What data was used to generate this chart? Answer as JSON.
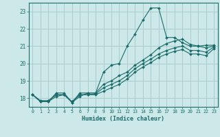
{
  "xlabel": "Humidex (Indice chaleur)",
  "bg_color": "#cce8e8",
  "grid_color": "#aacccc",
  "line_color": "#1a6b6b",
  "xlim": [
    -0.5,
    23.5
  ],
  "ylim": [
    17.5,
    23.5
  ],
  "yticks": [
    18,
    19,
    20,
    21,
    22,
    23
  ],
  "xticks": [
    0,
    1,
    2,
    3,
    4,
    5,
    6,
    7,
    8,
    9,
    10,
    11,
    12,
    13,
    14,
    15,
    16,
    17,
    18,
    19,
    20,
    21,
    22,
    23
  ],
  "series": [
    [
      18.2,
      17.8,
      17.8,
      18.3,
      18.3,
      17.75,
      18.3,
      18.3,
      18.3,
      19.5,
      19.9,
      20.0,
      21.0,
      21.7,
      22.5,
      23.2,
      23.2,
      21.5,
      21.5,
      21.2,
      21.0,
      21.0,
      21.05,
      21.05
    ],
    [
      18.2,
      17.8,
      17.8,
      18.1,
      18.2,
      17.75,
      18.1,
      18.3,
      18.3,
      18.8,
      19.0,
      19.3,
      19.5,
      19.9,
      20.2,
      20.5,
      20.9,
      21.15,
      21.3,
      21.4,
      21.1,
      21.0,
      20.9,
      21.0
    ],
    [
      18.2,
      17.85,
      17.85,
      18.2,
      18.2,
      17.8,
      18.2,
      18.2,
      18.25,
      18.6,
      18.8,
      19.0,
      19.3,
      19.7,
      20.0,
      20.25,
      20.55,
      20.75,
      20.9,
      21.0,
      20.75,
      20.75,
      20.65,
      20.95
    ],
    [
      18.2,
      17.85,
      17.85,
      18.2,
      18.2,
      17.8,
      18.2,
      18.2,
      18.2,
      18.4,
      18.6,
      18.8,
      19.1,
      19.5,
      19.8,
      20.05,
      20.35,
      20.55,
      20.7,
      20.8,
      20.55,
      20.55,
      20.45,
      20.85
    ]
  ]
}
